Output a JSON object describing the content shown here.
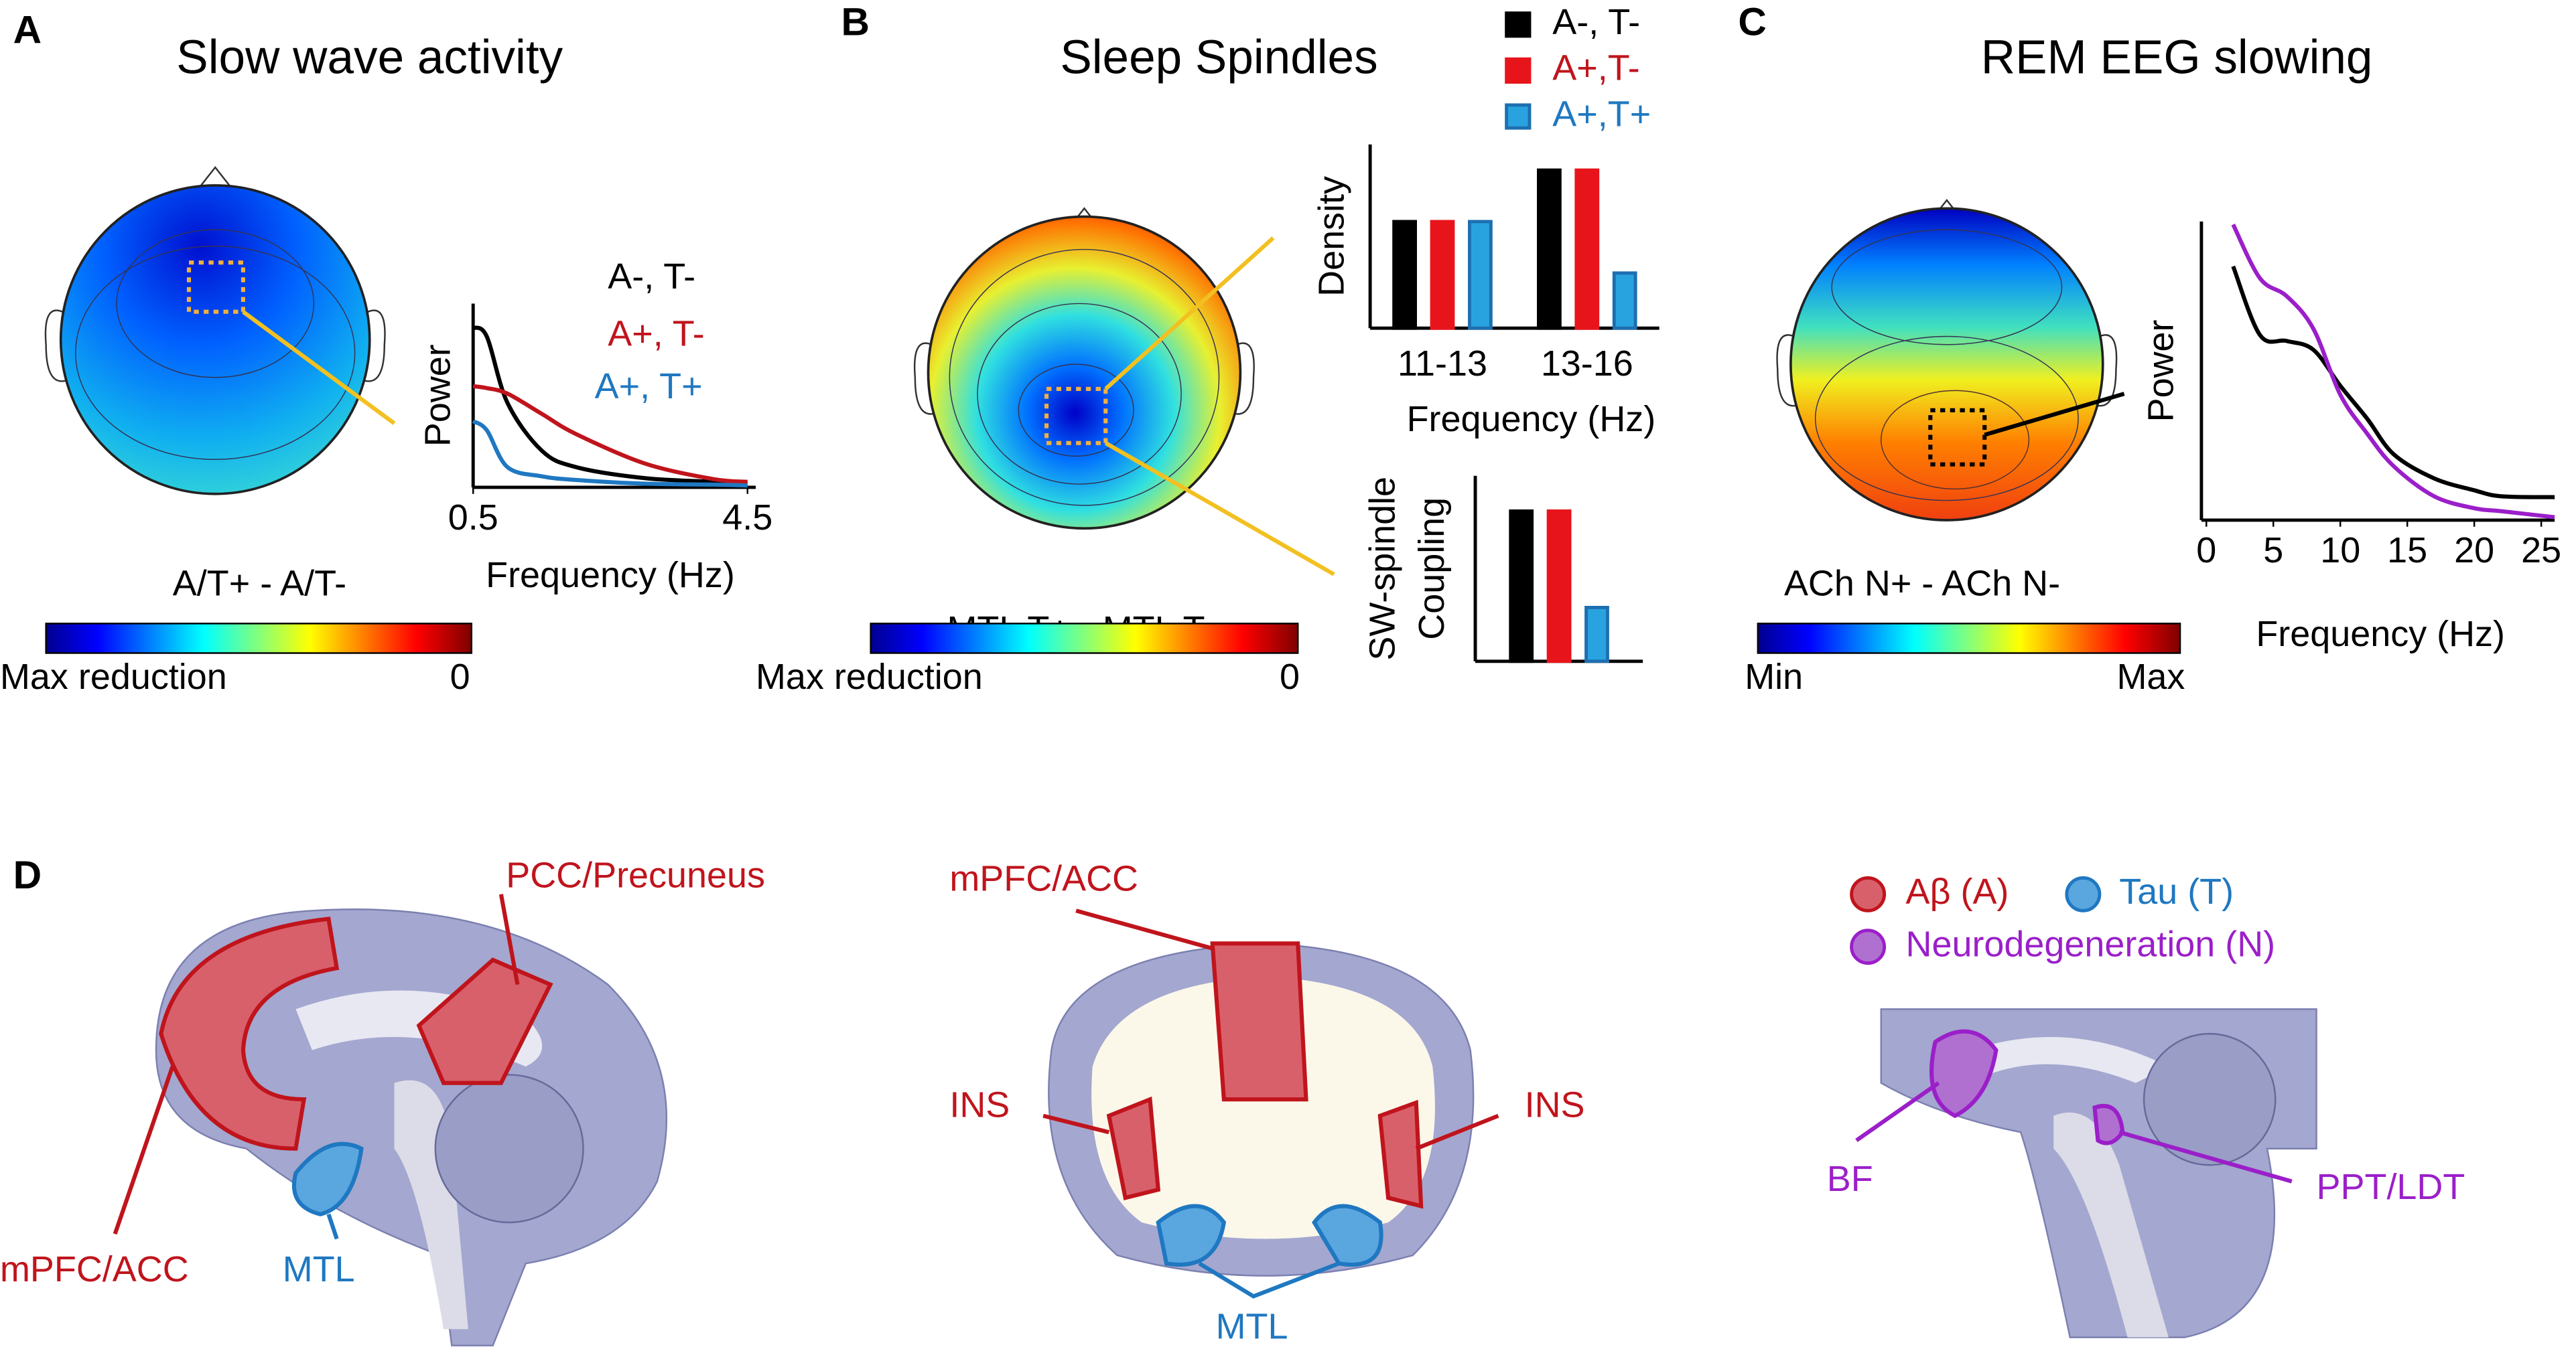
{
  "panels": {
    "A": {
      "letter": "A",
      "title": "Slow wave activity",
      "map_label": "A/T+ - A/T-",
      "colorbar_min": "Max reduction",
      "colorbar_max": "0"
    },
    "B": {
      "letter": "B",
      "title": "Sleep Spindles",
      "map_label": "MTL T+ - MTL T-",
      "colorbar_min": "Max reduction",
      "colorbar_max": "0"
    },
    "C": {
      "letter": "C",
      "title": "REM EEG slowing",
      "map_label": "ACh N+ - ACh N-",
      "colorbar_min": "Min",
      "colorbar_max": "Max"
    },
    "D": {
      "letter": "D",
      "sagittal": {
        "pcc": "PCC/Precuneus",
        "mpfc": "mPFC/ACC",
        "mtl": "MTL"
      },
      "coronal": {
        "mpfc": "mPFC/ACC",
        "ins_left": "INS",
        "ins_right": "INS",
        "mtl": "MTL"
      },
      "brainstem": {
        "bf": "BF",
        "ppt": "PPT/LDT"
      },
      "legend": [
        "Aβ (A)",
        "Tau (T)",
        "Neurodegeneration (N)"
      ]
    }
  },
  "chart_data": [
    {
      "type": "line",
      "xlabel": "Frequency (Hz)",
      "ylabel": "Power",
      "xlim": [
        0.5,
        4.5
      ],
      "ylim": [
        0,
        1
      ],
      "xticks": [
        0.5,
        4.5
      ],
      "x": [
        0.5,
        0.7,
        1,
        1.5,
        2,
        3,
        4,
        4.5
      ],
      "series": [
        {
          "name": "A-, T-",
          "color": "#000000",
          "values": [
            0.87,
            0.82,
            0.46,
            0.2,
            0.11,
            0.05,
            0.03,
            0.02
          ]
        },
        {
          "name": "A+, T-",
          "color": "#c0141c",
          "values": [
            0.55,
            0.54,
            0.51,
            0.4,
            0.29,
            0.13,
            0.045,
            0.03
          ]
        },
        {
          "name": "A+, T+",
          "color": "#1f78c1",
          "values": [
            0.36,
            0.31,
            0.11,
            0.06,
            0.04,
            0.02,
            0.015,
            0.01
          ]
        }
      ]
    },
    {
      "type": "bar",
      "xlabel": "Frequency (Hz)",
      "ylabel": "Density",
      "ylim": [
        0,
        1
      ],
      "categories": [
        "11-13",
        "13-16"
      ],
      "series": [
        {
          "name": "A-, T-",
          "color": "#000000",
          "values": [
            0.58,
            0.86
          ]
        },
        {
          "name": "A+,T-",
          "color": "#e8141b",
          "values": [
            0.58,
            0.86
          ]
        },
        {
          "name": "A+,T+",
          "color": "#29a3e0",
          "values": [
            0.58,
            0.3
          ]
        }
      ]
    },
    {
      "type": "bar",
      "ylabel": [
        "SW-spindle",
        "Coupling"
      ],
      "ylim": [
        0,
        1
      ],
      "categories": [
        null
      ],
      "series": [
        {
          "color": "#000000",
          "values": [
            0.81
          ]
        },
        {
          "color": "#e8141b",
          "values": [
            0.81
          ]
        },
        {
          "color": "#29a3e0",
          "values": [
            0.29
          ]
        }
      ]
    },
    {
      "type": "line",
      "xlabel": "Frequency (Hz)",
      "ylabel": "Power",
      "xlim": [
        0,
        26
      ],
      "ylim": [
        0,
        1
      ],
      "xticks": [
        0,
        5,
        10,
        15,
        20,
        25
      ],
      "x": [
        2,
        4,
        6,
        8,
        10,
        12,
        14,
        17,
        20,
        22,
        26
      ],
      "series": [
        {
          "color": "#000000",
          "values": [
            0.85,
            0.62,
            0.6,
            0.57,
            0.45,
            0.34,
            0.22,
            0.14,
            0.1,
            0.08,
            0.077
          ]
        },
        {
          "color": "#9b1fc9",
          "values": [
            0.99,
            0.81,
            0.75,
            0.64,
            0.42,
            0.29,
            0.18,
            0.08,
            0.04,
            0.03,
            0.01
          ]
        }
      ]
    }
  ]
}
